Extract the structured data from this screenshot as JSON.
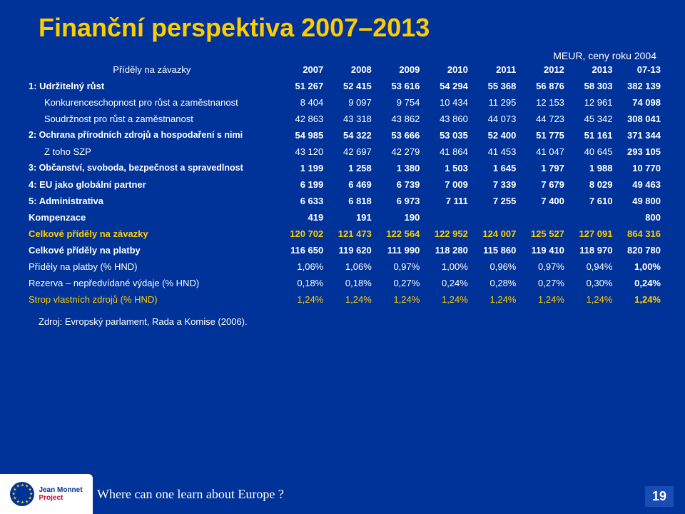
{
  "title": "Finanční perspektiva 2007–2013",
  "subtitle": "MEUR, ceny roku 2004",
  "header": {
    "label": "Příděly na závazky",
    "years": [
      "2007",
      "2008",
      "2009",
      "2010",
      "2011",
      "2012",
      "2013",
      "07-13"
    ]
  },
  "rows": [
    {
      "label": "1: Udržitelný růst",
      "v": [
        "51 267",
        "52 415",
        "53 616",
        "54 294",
        "55 368",
        "56 876",
        "58 303",
        "382 139"
      ],
      "bold": true,
      "indent": false,
      "yellow": false
    },
    {
      "label": "Konkurenceschopnost pro růst a zaměstnanost",
      "v": [
        "8 404",
        "9 097",
        "9 754",
        "10 434",
        "11 295",
        "12 153",
        "12 961",
        "74 098"
      ],
      "bold": false,
      "indent": true,
      "yellow": false
    },
    {
      "label": "Soudržnost pro růst a zaměstnanost",
      "v": [
        "42 863",
        "43 318",
        "43 862",
        "43 860",
        "44 073",
        "44 723",
        "45 342",
        "308 041"
      ],
      "bold": false,
      "indent": true,
      "yellow": false
    },
    {
      "label": "2: Ochrana přírodních zdrojů a hospodaření s nimi",
      "v": [
        "54 985",
        "54 322",
        "53 666",
        "53 035",
        "52 400",
        "51 775",
        "51 161",
        "371 344"
      ],
      "bold": true,
      "indent": false,
      "yellow": false
    },
    {
      "label": "Z toho SZP",
      "v": [
        "43 120",
        "42 697",
        "42 279",
        "41 864",
        "41 453",
        "41 047",
        "40 645",
        "293 105"
      ],
      "bold": false,
      "indent": true,
      "yellow": false
    },
    {
      "label": "3: Občanství, svoboda, bezpečnost a spravedlnost",
      "v": [
        "1 199",
        "1 258",
        "1 380",
        "1 503",
        "1 645",
        "1 797",
        "1 988",
        "10 770"
      ],
      "bold": true,
      "indent": false,
      "yellow": false
    },
    {
      "label": "4: EU jako globální partner",
      "v": [
        "6 199",
        "6 469",
        "6 739",
        "7 009",
        "7 339",
        "7 679",
        "8 029",
        "49 463"
      ],
      "bold": true,
      "indent": false,
      "yellow": false
    },
    {
      "label": "5: Administrativa",
      "v": [
        "6 633",
        "6 818",
        "6 973",
        "7 111",
        "7 255",
        "7 400",
        "7 610",
        "49 800"
      ],
      "bold": true,
      "indent": false,
      "yellow": false
    },
    {
      "label": "Kompenzace",
      "v": [
        "419",
        "191",
        "190",
        "",
        "",
        "",
        "",
        "800"
      ],
      "bold": true,
      "indent": false,
      "yellow": false
    },
    {
      "label": "Celkové příděly na závazky",
      "v": [
        "120 702",
        "121 473",
        "122 564",
        "122 952",
        "124 007",
        "125 527",
        "127 091",
        "864 316"
      ],
      "bold": true,
      "indent": false,
      "yellow": true
    },
    {
      "label": "Celkové příděly na platby",
      "v": [
        "116 650",
        "119 620",
        "111 990",
        "118 280",
        "115 860",
        "119 410",
        "118 970",
        "820 780"
      ],
      "bold": true,
      "indent": false,
      "yellow": false
    },
    {
      "label": "Příděly na platby (% HND)",
      "v": [
        "1,06%",
        "1,06%",
        "0,97%",
        "1,00%",
        "0,96%",
        "0,97%",
        "0,94%",
        "1,00%"
      ],
      "bold": false,
      "indent": false,
      "yellow": false
    },
    {
      "label": "Rezerva – nepředvídané výdaje (% HND)",
      "v": [
        "0,18%",
        "0,18%",
        "0,27%",
        "0,24%",
        "0,28%",
        "0,27%",
        "0,30%",
        "0,24%"
      ],
      "bold": false,
      "indent": false,
      "yellow": false
    },
    {
      "label": "Strop vlastních zdrojů (% HND)",
      "v": [
        "1,24%",
        "1,24%",
        "1,24%",
        "1,24%",
        "1,24%",
        "1,24%",
        "1,24%",
        "1,24%"
      ],
      "bold": false,
      "indent": false,
      "yellow": true
    }
  ],
  "source": "Zdroj: Evropský parlament, Rada a Komise (2006).",
  "logo": {
    "line1": "Jean Monnet",
    "line2": "Project"
  },
  "tagline": "Where can one learn about Europe ?",
  "page": "19",
  "colors": {
    "bg": "#003399",
    "accent": "#ffcc00",
    "text": "#ffffff",
    "red": "#cc0033"
  }
}
